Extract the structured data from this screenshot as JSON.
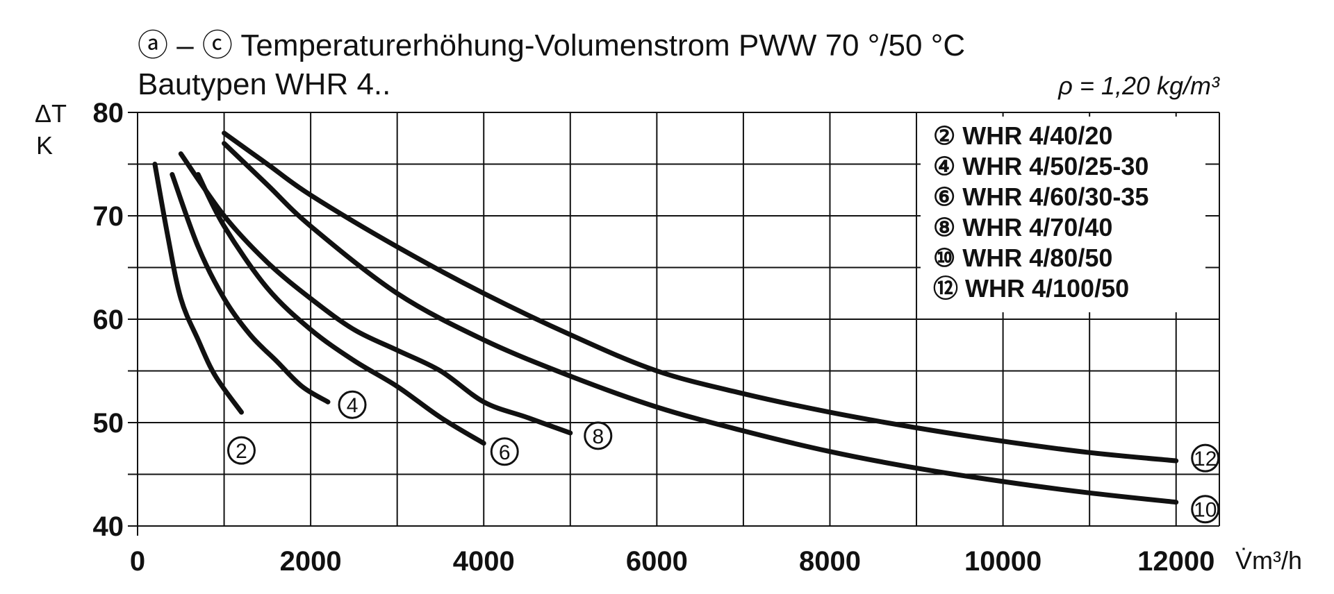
{
  "chart_data": {
    "type": "line",
    "title": "ⓐ – ⓒ Temperaturerhöhung-Volumenstrom PWW 70 °/50 °C",
    "subtitle": "Bautypen WHR 4..",
    "density_note": "ρ = 1,20 kg/m³",
    "ylabel": "ΔT",
    "yunit": "K",
    "xlabel": "V̇",
    "xunit": "m³/h",
    "xlim": [
      0,
      12500
    ],
    "ylim": [
      40,
      80
    ],
    "x_ticks": [
      "0",
      "2000",
      "4000",
      "6000",
      "8000",
      "10000",
      "12000"
    ],
    "y_ticks": [
      "40",
      "50",
      "60",
      "70",
      "80"
    ],
    "grid": true,
    "legend_position": "top-right",
    "series": [
      {
        "name": "② WHR 4/40/20",
        "marker": "②",
        "points": [
          [
            200,
            75
          ],
          [
            350,
            68
          ],
          [
            500,
            62
          ],
          [
            700,
            58
          ],
          [
            900,
            54.5
          ],
          [
            1200,
            51
          ]
        ]
      },
      {
        "name": "④ WHR 4/50/25-30",
        "marker": "④",
        "points": [
          [
            400,
            74
          ],
          [
            700,
            67
          ],
          [
            1000,
            62
          ],
          [
            1300,
            58.5
          ],
          [
            1600,
            56
          ],
          [
            1900,
            53.5
          ],
          [
            2200,
            52
          ]
        ]
      },
      {
        "name": "⑥ WHR 4/60/30-35",
        "marker": "⑥",
        "points": [
          [
            700,
            74
          ],
          [
            1000,
            69
          ],
          [
            1500,
            63
          ],
          [
            2000,
            59
          ],
          [
            2500,
            56
          ],
          [
            3000,
            53.5
          ],
          [
            3500,
            50.5
          ],
          [
            4000,
            48
          ]
        ]
      },
      {
        "name": "⑧ WHR 4/70/40",
        "marker": "⑧",
        "points": [
          [
            500,
            76
          ],
          [
            1000,
            70
          ],
          [
            1500,
            65.5
          ],
          [
            2000,
            62
          ],
          [
            2500,
            59
          ],
          [
            3000,
            57
          ],
          [
            3500,
            55
          ],
          [
            4000,
            52
          ],
          [
            4500,
            50.5
          ],
          [
            5000,
            49
          ]
        ]
      },
      {
        "name": "⑩ WHR 4/80/50",
        "marker": "⑩",
        "points": [
          [
            1000,
            77
          ],
          [
            1500,
            73
          ],
          [
            2000,
            69
          ],
          [
            3000,
            62.5
          ],
          [
            4000,
            58
          ],
          [
            5000,
            54.5
          ],
          [
            6000,
            51.5
          ],
          [
            7000,
            49.2
          ],
          [
            8000,
            47.2
          ],
          [
            9000,
            45.6
          ],
          [
            10000,
            44.3
          ],
          [
            11000,
            43.2
          ],
          [
            12000,
            42.3
          ]
        ]
      },
      {
        "name": "⑫ WHR 4/100/50",
        "marker": "⑫",
        "points": [
          [
            1000,
            78
          ],
          [
            1500,
            75
          ],
          [
            2000,
            72
          ],
          [
            3000,
            67
          ],
          [
            4000,
            62.5
          ],
          [
            5000,
            58.5
          ],
          [
            6000,
            55
          ],
          [
            7000,
            52.8
          ],
          [
            8000,
            51
          ],
          [
            9000,
            49.5
          ],
          [
            10000,
            48.2
          ],
          [
            11000,
            47.1
          ],
          [
            12000,
            46.3
          ]
        ]
      }
    ]
  }
}
